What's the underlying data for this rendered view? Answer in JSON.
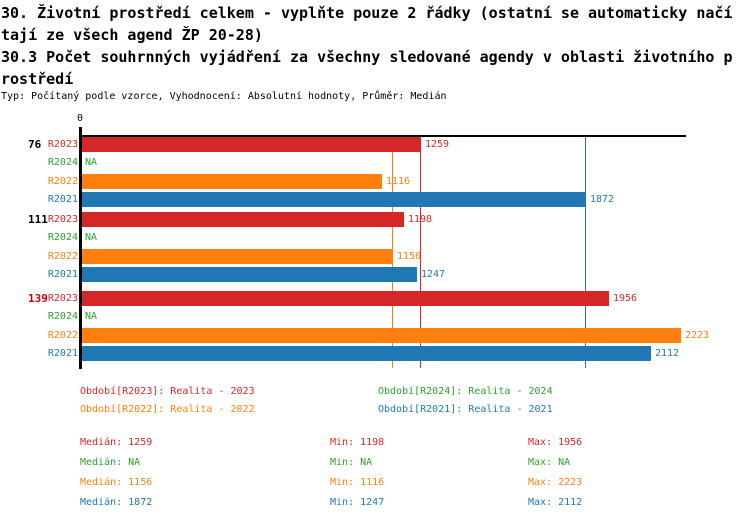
{
  "header": {
    "title_lines": [
      "30. Životní prostředí celkem - vyplňte pouze 2 řádky (ostatní se automaticky načí",
      "tají ze všech agend ŽP 20-28)",
      "30.3 Počet souhrnných vyjádření za všechny sledované agendy v oblasti životního p",
      "rostředí"
    ],
    "subtitle": "Typ: Počítaný podle vzorce, Vyhodnocení: Absolutní hodnoty, Průměr: Medián"
  },
  "colors": {
    "r2023": "#d62728",
    "r2024": "#2ca02c",
    "r2022": "#ff7f0e",
    "r2021": "#1f77b4",
    "axis": "#000000",
    "highlight_group_label": "#cc0000"
  },
  "chart_data": {
    "type": "bar",
    "orientation": "horizontal",
    "title": "",
    "xlabel": "",
    "ylabel": "",
    "xlim": [
      0,
      2246
    ],
    "x_ticks": [
      "0"
    ],
    "axis": {
      "origin_label": "0"
    },
    "categories": [
      "76",
      "111",
      "139"
    ],
    "series": [
      {
        "name": "R2023",
        "legend": "Realita - 2023",
        "color": "#d62728",
        "values": [
          1259,
          1198,
          1956
        ],
        "median": 1259,
        "min": 1198,
        "max": 1956
      },
      {
        "name": "R2024",
        "legend": "Realita - 2024",
        "color": "#2ca02c",
        "values": [
          null,
          null,
          null
        ],
        "median": null,
        "min": null,
        "max": null
      },
      {
        "name": "R2022",
        "legend": "Realita - 2022",
        "color": "#ff7f0e",
        "values": [
          1116,
          1156,
          2223
        ],
        "median": 1156,
        "min": 1116,
        "max": 2223
      },
      {
        "name": "R2021",
        "legend": "Realita - 2021",
        "color": "#1f77b4",
        "values": [
          1872,
          1247,
          2112
        ],
        "median": 1872,
        "min": 1247,
        "max": 2112
      }
    ],
    "median_lines": [
      {
        "series": "R2023",
        "value": 1259,
        "color": "#d62728"
      },
      {
        "series": "R2022",
        "value": 1156,
        "color": "#ff7f0e"
      },
      {
        "series": "R2021",
        "value": 1872,
        "color": "#1f77b4"
      }
    ],
    "groups": [
      {
        "label": "76",
        "label_color": "#000000",
        "bars": [
          {
            "series": "R2023",
            "value": 1259,
            "display": "1259",
            "color": "#d62728"
          },
          {
            "series": "R2024",
            "value": null,
            "display": "NA",
            "color": "#2ca02c"
          },
          {
            "series": "R2022",
            "value": 1116,
            "display": "1116",
            "color": "#ff7f0e"
          },
          {
            "series": "R2021",
            "value": 1872,
            "display": "1872",
            "color": "#1f77b4"
          }
        ]
      },
      {
        "label": "111",
        "label_color": "#000000",
        "bars": [
          {
            "series": "R2023",
            "value": 1198,
            "display": "1198",
            "color": "#d62728"
          },
          {
            "series": "R2024",
            "value": null,
            "display": "NA",
            "color": "#2ca02c"
          },
          {
            "series": "R2022",
            "value": 1156,
            "display": "1156",
            "color": "#ff7f0e"
          },
          {
            "series": "R2021",
            "value": 1247,
            "display": "1247",
            "color": "#1f77b4"
          }
        ]
      },
      {
        "label": "139",
        "label_color": "#cc0000",
        "bars": [
          {
            "series": "R2023",
            "value": 1956,
            "display": "1956",
            "color": "#d62728"
          },
          {
            "series": "R2024",
            "value": null,
            "display": "NA",
            "color": "#2ca02c"
          },
          {
            "series": "R2022",
            "value": 2223,
            "display": "2223",
            "color": "#ff7f0e"
          },
          {
            "series": "R2021",
            "value": 2112,
            "display": "2112",
            "color": "#1f77b4"
          }
        ]
      }
    ]
  },
  "legend": {
    "items": [
      {
        "label": "Období[R2023]: Realita - 2023",
        "color": "#d62728"
      },
      {
        "label": "Období[R2024]: Realita - 2024",
        "color": "#2ca02c"
      },
      {
        "label": "Období[R2022]: Realita - 2022",
        "color": "#ff7f0e"
      },
      {
        "label": "Období[R2021]: Realita - 2021",
        "color": "#1f77b4"
      }
    ]
  },
  "stats": {
    "columns": [
      "Medián",
      "Min",
      "Max"
    ],
    "rows": [
      {
        "series": "R2023",
        "color": "#d62728",
        "median": "1259",
        "min": "1198",
        "max": "1956"
      },
      {
        "series": "R2024",
        "color": "#2ca02c",
        "median": "NA",
        "min": "NA",
        "max": "NA"
      },
      {
        "series": "R2022",
        "color": "#ff7f0e",
        "median": "1156",
        "min": "1116",
        "max": "2223"
      },
      {
        "series": "R2021",
        "color": "#1f77b4",
        "median": "1872",
        "min": "1247",
        "max": "2112"
      }
    ]
  }
}
